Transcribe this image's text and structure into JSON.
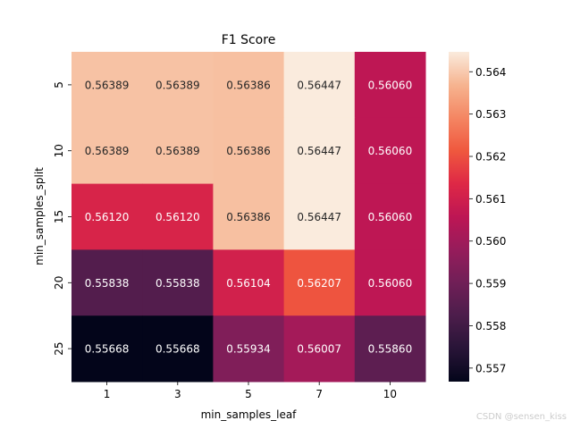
{
  "chart_data": {
    "type": "heatmap",
    "title": "F1 Score",
    "xlabel": "min_samples_leaf",
    "ylabel": "min_samples_split",
    "x_categories": [
      "1",
      "3",
      "5",
      "7",
      "10"
    ],
    "y_categories": [
      "5",
      "10",
      "15",
      "20",
      "25"
    ],
    "values": [
      [
        0.56389,
        0.56389,
        0.56386,
        0.56447,
        0.5606
      ],
      [
        0.56389,
        0.56389,
        0.56386,
        0.56447,
        0.5606
      ],
      [
        0.5612,
        0.5612,
        0.56386,
        0.56447,
        0.5606
      ],
      [
        0.55838,
        0.55838,
        0.56104,
        0.56207,
        0.5606
      ],
      [
        0.55668,
        0.55668,
        0.55934,
        0.56007,
        0.5586
      ]
    ],
    "value_format": "0.00000",
    "colormap": "rocket",
    "colorbar": {
      "range": [
        0.55668,
        0.56447
      ],
      "ticks": [
        0.557,
        0.558,
        0.559,
        0.56,
        0.561,
        0.562,
        0.563,
        0.564
      ],
      "tick_labels": [
        "0.557",
        "0.558",
        "0.559",
        "0.560",
        "0.561",
        "0.562",
        "0.563",
        "0.564"
      ]
    }
  },
  "watermark": "CSDN @sensen_kiss"
}
